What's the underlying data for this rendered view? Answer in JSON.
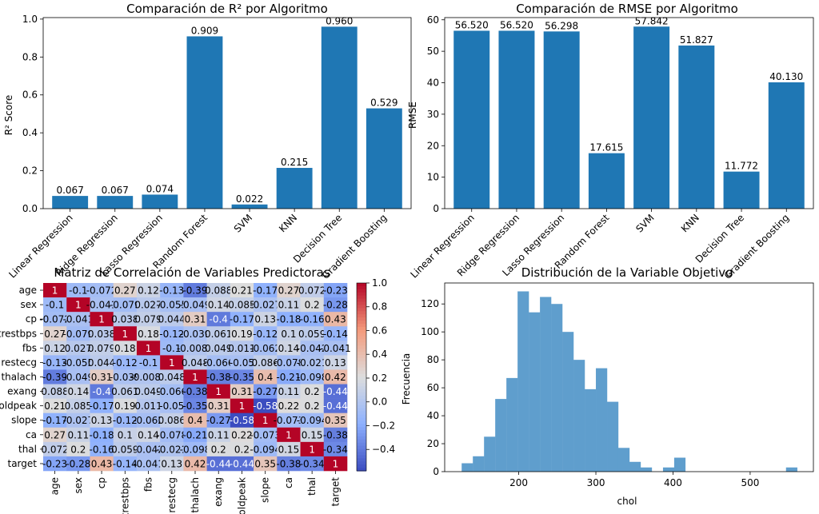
{
  "chart_data": [
    {
      "type": "bar",
      "title": "Comparación de R² por Algoritmo",
      "xlabel": "",
      "ylabel": "R² Score",
      "categories": [
        "Linear Regression",
        "Ridge Regression",
        "Lasso Regression",
        "Random Forest",
        "SVM",
        "KNN",
        "Decision Tree",
        "Gradient Boosting"
      ],
      "values": [
        0.067,
        0.067,
        0.074,
        0.909,
        0.022,
        0.215,
        0.96,
        0.529
      ],
      "value_labels": [
        "0.067",
        "0.067",
        "0.074",
        "0.909",
        "0.022",
        "0.215",
        "0.960",
        "0.529"
      ],
      "ylim": [
        0,
        1.008
      ],
      "yticks": [
        0.0,
        0.2,
        0.4,
        0.6,
        0.8,
        1.0
      ],
      "ytick_labels": [
        "0.0",
        "0.2",
        "0.4",
        "0.6",
        "0.8",
        "1.0"
      ],
      "bar_color": "#1f77b4",
      "grid": false
    },
    {
      "type": "bar",
      "title": "Comparación de RMSE por Algoritmo",
      "xlabel": "",
      "ylabel": "RMSE",
      "categories": [
        "Linear Regression",
        "Ridge Regression",
        "Lasso Regression",
        "Random Forest",
        "SVM",
        "KNN",
        "Decision Tree",
        "Gradient Boosting"
      ],
      "values": [
        56.52,
        56.52,
        56.298,
        17.615,
        57.842,
        51.827,
        11.772,
        40.13
      ],
      "value_labels": [
        "56.520",
        "56.520",
        "56.298",
        "17.615",
        "57.842",
        "51.827",
        "11.772",
        "40.130"
      ],
      "ylim": [
        0,
        60.7
      ],
      "yticks": [
        0,
        10,
        20,
        30,
        40,
        50,
        60
      ],
      "ytick_labels": [
        "0",
        "10",
        "20",
        "30",
        "40",
        "50",
        "60"
      ],
      "bar_color": "#1f77b4",
      "grid": false
    },
    {
      "type": "heatmap",
      "title": "Matriz de Correlación de Variables Predictoras",
      "labels": [
        "age",
        "sex",
        "cp",
        "trestbps",
        "fbs",
        "restecg",
        "thalach",
        "exang",
        "oldpeak",
        "slope",
        "ca",
        "thal",
        "target"
      ],
      "cell_text": [
        [
          "1",
          "-0.1",
          "-0.072",
          "0.27",
          "0.12",
          "-0.13",
          "-0.39",
          "0.088",
          "0.21",
          "-0.17",
          "0.27",
          "0.072",
          "-0.23"
        ],
        [
          "-0.1",
          "1",
          "-0.041",
          "-0.079",
          "0.027",
          "-0.055",
          "-0.049",
          "0.14",
          "0.085",
          "-0.027",
          "0.11",
          "0.2",
          "-0.28"
        ],
        [
          "-0.072",
          "-0.041",
          "1",
          "0.038",
          "0.079",
          "0.044",
          "0.31",
          "-0.4",
          "-0.17",
          "0.13",
          "-0.18",
          "-0.16",
          "0.43"
        ],
        [
          "0.27",
          "-0.079",
          "0.038",
          "1",
          "0.18",
          "-0.12",
          "-0.039",
          "0.061",
          "0.19",
          "-0.12",
          "0.1",
          "0.059",
          "-0.14"
        ],
        [
          "0.12",
          "0.027",
          "0.079",
          "0.18",
          "1",
          "-0.1",
          "-0.0089",
          "0.049",
          "0.011",
          "-0.062",
          "0.14",
          "-0.042",
          "-0.041"
        ],
        [
          "-0.13",
          "-0.055",
          "0.044",
          "-0.12",
          "-0.1",
          "1",
          "0.048",
          "-0.066",
          "-0.05",
          "0.086",
          "-0.078",
          "-0.021",
          "0.13"
        ],
        [
          "-0.39",
          "-0.049",
          "0.31",
          "-0.039",
          "-0.0089",
          "0.048",
          "1",
          "-0.38",
          "-0.35",
          "0.4",
          "-0.21",
          "-0.098",
          "0.42"
        ],
        [
          "0.088",
          "0.14",
          "-0.4",
          "0.061",
          "0.049",
          "-0.066",
          "-0.38",
          "1",
          "0.31",
          "-0.27",
          "0.11",
          "0.2",
          "-0.44"
        ],
        [
          "0.21",
          "0.085",
          "-0.17",
          "0.19",
          "0.011",
          "-0.05",
          "-0.35",
          "0.31",
          "1",
          "-0.58",
          "0.22",
          "0.2",
          "-0.44"
        ],
        [
          "-0.17",
          "-0.027",
          "0.13",
          "-0.12",
          "-0.062",
          "0.086",
          "0.4",
          "-0.27",
          "-0.58",
          "1",
          "-0.073",
          "-0.094",
          "0.35"
        ],
        [
          "0.27",
          "0.11",
          "-0.18",
          "0.1",
          "0.14",
          "-0.078",
          "-0.21",
          "0.11",
          "0.22",
          "-0.073",
          "1",
          "0.15",
          "-0.38"
        ],
        [
          "0.072",
          "0.2",
          "-0.16",
          "0.059",
          "-0.042",
          "-0.021",
          "-0.098",
          "0.2",
          "0.2",
          "-0.094",
          "0.15",
          "1",
          "-0.34"
        ],
        [
          "-0.23",
          "-0.28",
          "0.43",
          "-0.14",
          "-0.041",
          "0.13",
          "0.42",
          "-0.44",
          "-0.44",
          "0.35",
          "-0.38",
          "-0.34",
          "1"
        ]
      ],
      "colormap": "coolwarm",
      "vmin": -0.58,
      "vmax": 1.0,
      "colorbar_ticks": [
        -0.4,
        -0.2,
        0.0,
        0.2,
        0.4,
        0.6,
        0.8,
        1.0
      ],
      "colorbar_tick_labels": [
        "−0.4",
        "−0.2",
        "0.0",
        "0.2",
        "0.4",
        "0.6",
        "0.8",
        "1.0"
      ]
    },
    {
      "type": "bar",
      "subtype": "histogram",
      "title": "Distribución de la Variable Objetivo",
      "xlabel": "chol",
      "ylabel": "Frecuencia",
      "bin_edges": [
        126,
        140.5,
        155,
        169.5,
        184,
        198.5,
        213,
        227.5,
        242,
        256.5,
        271,
        285.5,
        300,
        314.5,
        329,
        343.5,
        358,
        372.5,
        387,
        401.5,
        416,
        430.5,
        445,
        459.5,
        474,
        488.5,
        503,
        517.5,
        532,
        546.5,
        561
      ],
      "counts": [
        6,
        11,
        25,
        52,
        67,
        129,
        114,
        125,
        120,
        100,
        80,
        59,
        74,
        50,
        17,
        7,
        3,
        0,
        3,
        10,
        0,
        0,
        0,
        0,
        0,
        0,
        0,
        0,
        0,
        3
      ],
      "xlim": [
        104,
        582
      ],
      "xticks": [
        200,
        300,
        400,
        500
      ],
      "xtick_labels": [
        "200",
        "300",
        "400",
        "500"
      ],
      "ylim": [
        0,
        135
      ],
      "yticks": [
        0,
        20,
        40,
        60,
        80,
        100,
        120
      ],
      "ytick_labels": [
        "0",
        "20",
        "40",
        "60",
        "80",
        "100",
        "120"
      ],
      "bar_color": "#5f9ecd",
      "grid": false
    }
  ]
}
